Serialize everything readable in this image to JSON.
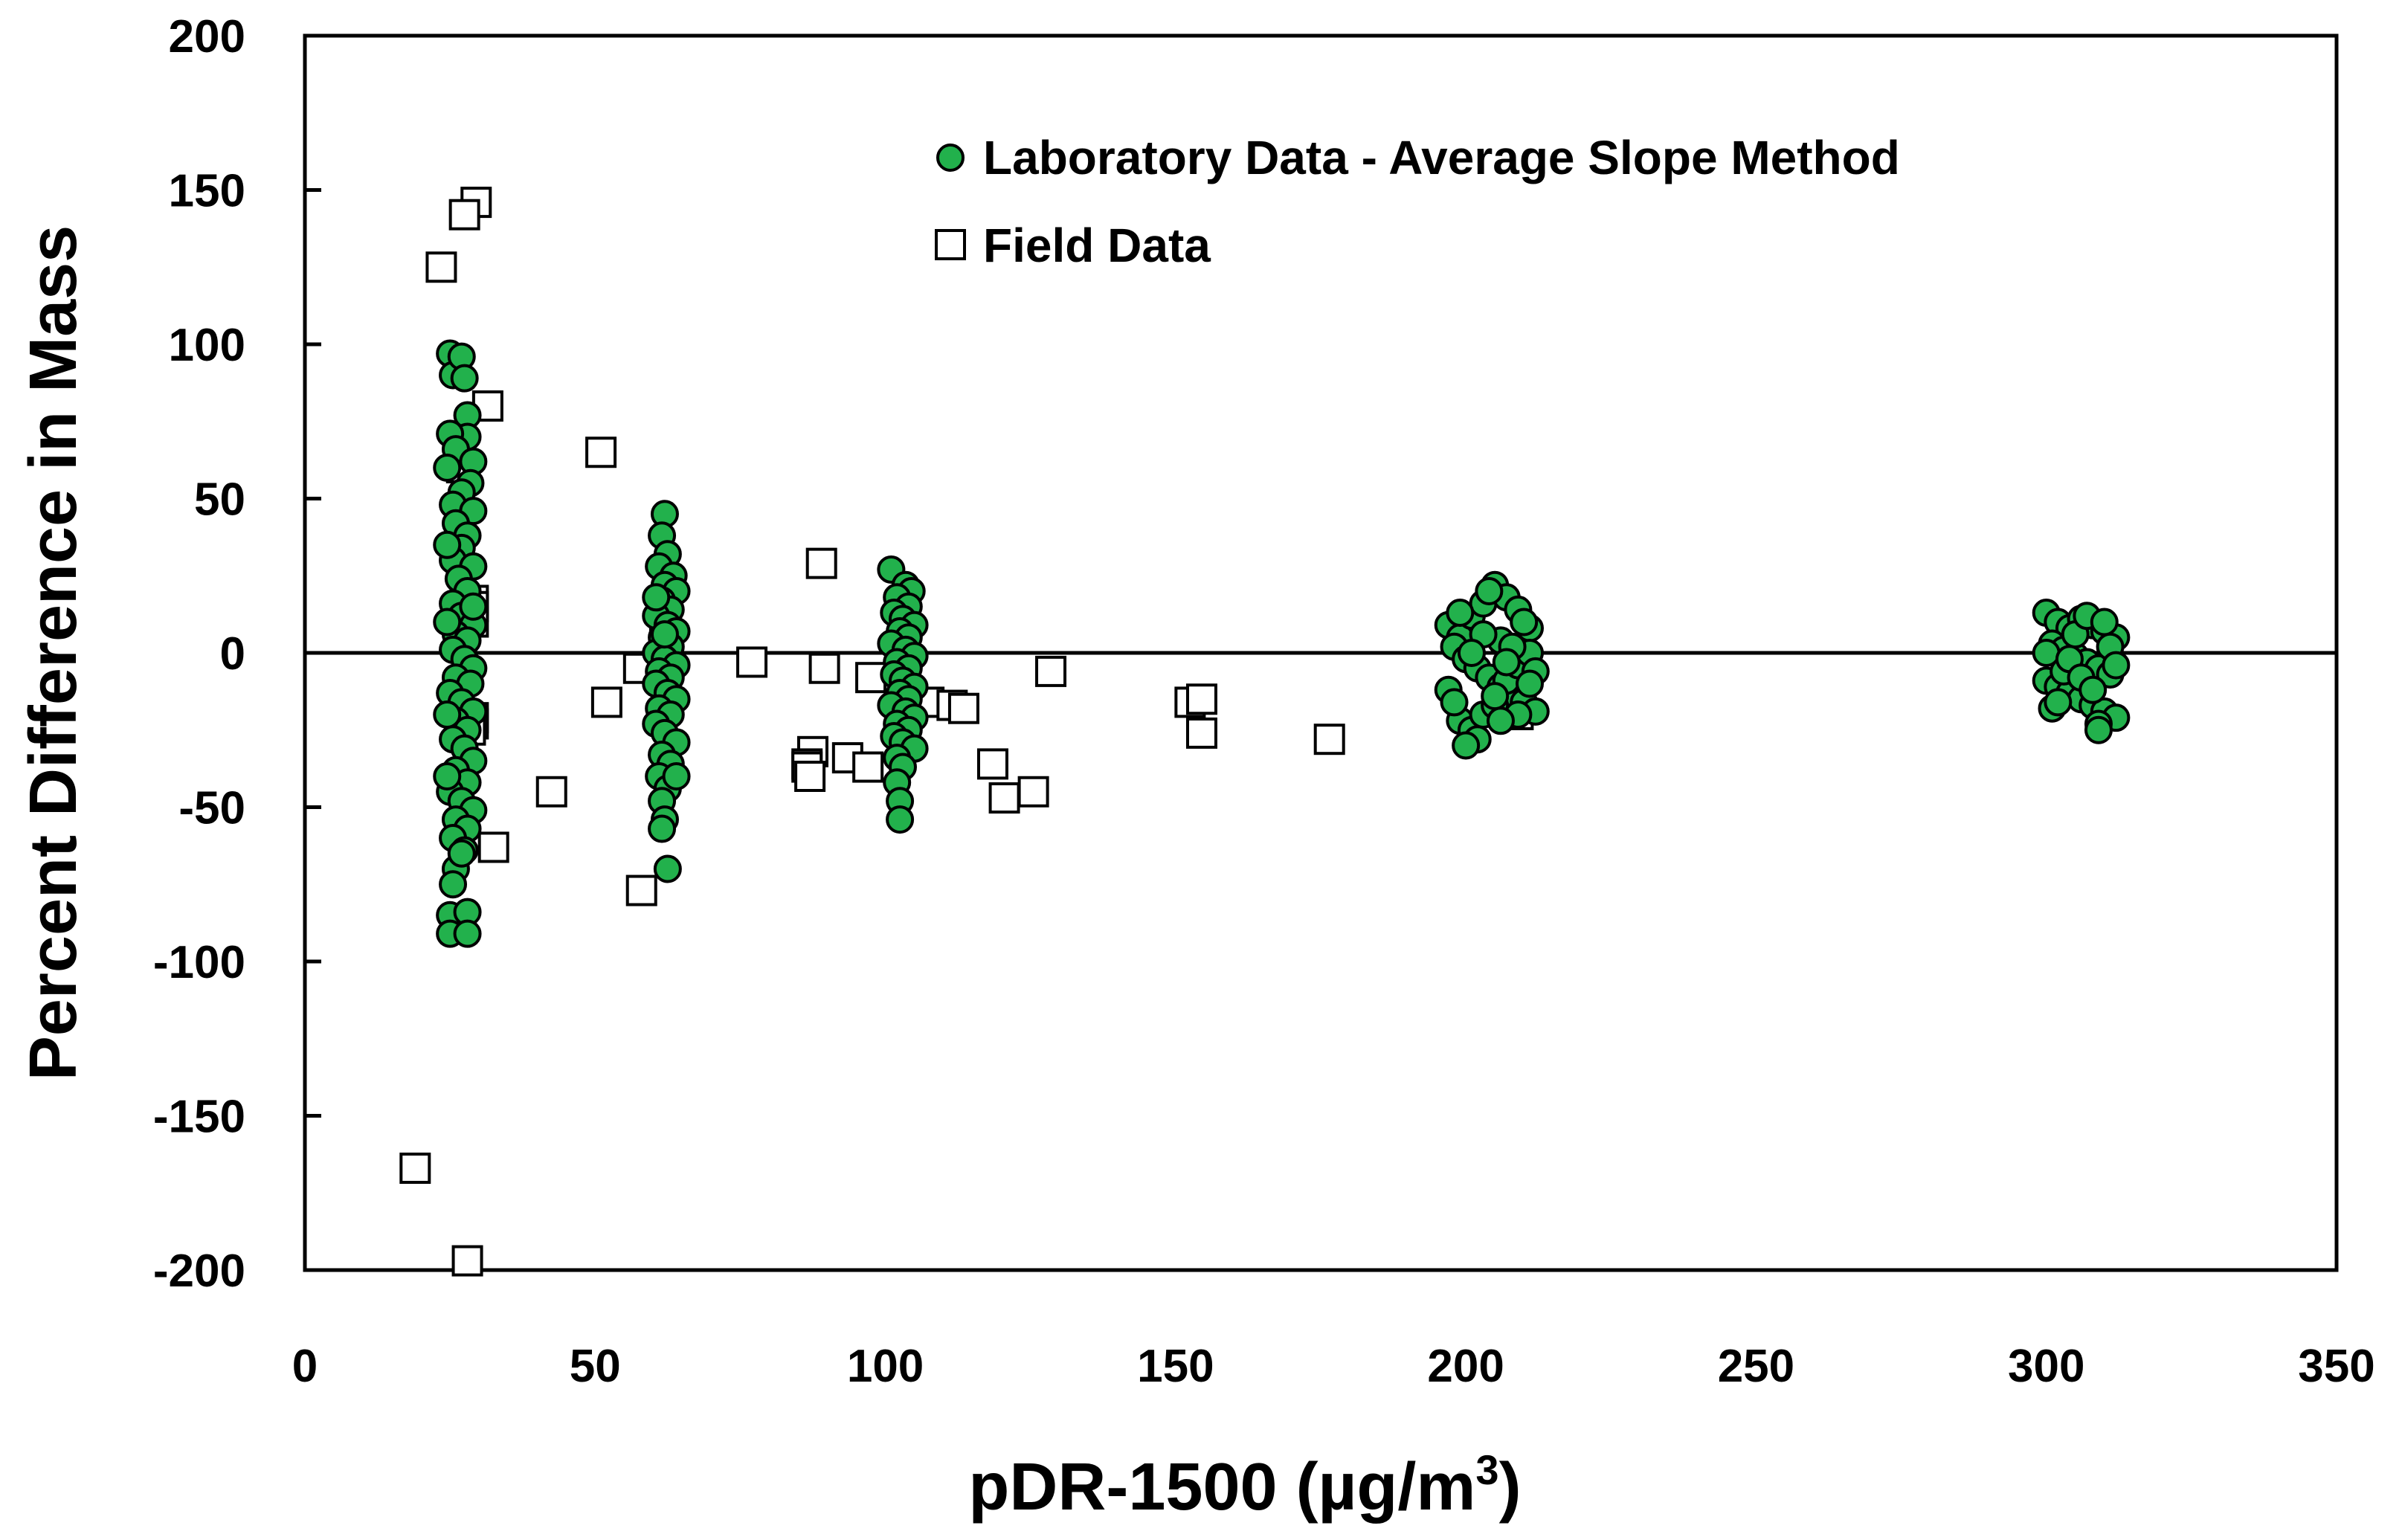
{
  "chart_data": {
    "type": "scatter",
    "title": "",
    "xlabel": "pDR-1500 (µg/m",
    "xlabel_superscript": "3",
    "xlabel_suffix": ")",
    "ylabel": "Percent Difference in Mass",
    "xlim": [
      0,
      350
    ],
    "ylim": [
      -200,
      200
    ],
    "x_ticks": [
      0,
      50,
      100,
      150,
      200,
      250,
      300,
      350
    ],
    "y_ticks": [
      200,
      150,
      100,
      50,
      0,
      -50,
      -100,
      -150,
      -200
    ],
    "x_tick_labels": [
      "0",
      "50",
      "100",
      "150",
      "200",
      "250",
      "300",
      "350"
    ],
    "y_tick_labels": [
      "200",
      "150",
      "100",
      "50",
      "0",
      "-50",
      "-100",
      "-150",
      "-200"
    ],
    "reference_line_y": 0,
    "grid": false,
    "legend_position": "top-center",
    "series": [
      {
        "name": "Laboratory Data - Average Slope Method",
        "marker": "circle",
        "color": "#22b14c",
        "edge_color": "#000000",
        "points": [
          [
            25,
            97
          ],
          [
            25.5,
            90
          ],
          [
            27,
            96
          ],
          [
            27.5,
            89
          ],
          [
            28,
            77
          ],
          [
            28,
            70
          ],
          [
            25,
            71
          ],
          [
            26,
            66
          ],
          [
            24.5,
            60
          ],
          [
            29,
            62
          ],
          [
            28.5,
            55
          ],
          [
            27,
            52
          ],
          [
            25.5,
            48
          ],
          [
            29,
            46
          ],
          [
            26,
            42
          ],
          [
            28,
            38
          ],
          [
            27,
            34
          ],
          [
            25.5,
            30
          ],
          [
            29,
            28
          ],
          [
            26.5,
            24
          ],
          [
            28,
            20
          ],
          [
            25.5,
            16
          ],
          [
            27,
            12
          ],
          [
            29,
            9
          ],
          [
            26,
            6
          ],
          [
            28,
            4
          ],
          [
            25.5,
            1
          ],
          [
            27.5,
            -2
          ],
          [
            29,
            -5
          ],
          [
            26,
            -8
          ],
          [
            28.5,
            -10
          ],
          [
            25,
            -13
          ],
          [
            27,
            -16
          ],
          [
            29,
            -19
          ],
          [
            26,
            -22
          ],
          [
            28,
            -25
          ],
          [
            25.5,
            -28
          ],
          [
            27.5,
            -31
          ],
          [
            29,
            -35
          ],
          [
            26,
            -38
          ],
          [
            28,
            -42
          ],
          [
            25,
            -45
          ],
          [
            27,
            -48
          ],
          [
            29,
            -51
          ],
          [
            26,
            -54
          ],
          [
            28,
            -57
          ],
          [
            25.5,
            -60
          ],
          [
            27.5,
            -64
          ],
          [
            26,
            -70
          ],
          [
            25.5,
            -75
          ],
          [
            25,
            -85
          ],
          [
            28,
            -84
          ],
          [
            25,
            -91
          ],
          [
            28,
            -91
          ],
          [
            24.5,
            35
          ],
          [
            24.5,
            10
          ],
          [
            24.5,
            -20
          ],
          [
            24.5,
            -40
          ],
          [
            29,
            15
          ],
          [
            27,
            -65
          ],
          [
            62,
            45
          ],
          [
            61.5,
            38
          ],
          [
            62.5,
            32
          ],
          [
            61,
            28
          ],
          [
            63.5,
            25
          ],
          [
            62,
            22
          ],
          [
            64,
            20
          ],
          [
            61.5,
            17
          ],
          [
            63,
            14
          ],
          [
            60.5,
            12
          ],
          [
            62.5,
            9
          ],
          [
            64,
            7
          ],
          [
            61.5,
            5
          ],
          [
            63,
            2
          ],
          [
            60.5,
            0
          ],
          [
            62,
            -2
          ],
          [
            64,
            -4
          ],
          [
            61,
            -6
          ],
          [
            63,
            -8
          ],
          [
            60.5,
            -10
          ],
          [
            62.5,
            -13
          ],
          [
            64,
            -15
          ],
          [
            61,
            -18
          ],
          [
            63,
            -20
          ],
          [
            60.5,
            -23
          ],
          [
            62,
            -26
          ],
          [
            64,
            -29
          ],
          [
            61.5,
            -33
          ],
          [
            63,
            -36
          ],
          [
            61,
            -40
          ],
          [
            62.5,
            -44
          ],
          [
            61.5,
            -48
          ],
          [
            62,
            -54
          ],
          [
            61.5,
            -57
          ],
          [
            62.5,
            -70
          ],
          [
            60.5,
            18
          ],
          [
            64,
            -40
          ],
          [
            62,
            6
          ],
          [
            101,
            27
          ],
          [
            103.5,
            22
          ],
          [
            104.5,
            20
          ],
          [
            102,
            18
          ],
          [
            104,
            15
          ],
          [
            101.5,
            13
          ],
          [
            103,
            11
          ],
          [
            105,
            9
          ],
          [
            102.5,
            7
          ],
          [
            104,
            5
          ],
          [
            101,
            3
          ],
          [
            103.5,
            1
          ],
          [
            105,
            -1
          ],
          [
            102,
            -3
          ],
          [
            104,
            -5
          ],
          [
            101.5,
            -7
          ],
          [
            103,
            -9
          ],
          [
            105,
            -11
          ],
          [
            102.5,
            -13
          ],
          [
            104,
            -15
          ],
          [
            101,
            -17
          ],
          [
            103.5,
            -19
          ],
          [
            105,
            -21
          ],
          [
            102,
            -23
          ],
          [
            104,
            -25
          ],
          [
            101.5,
            -27
          ],
          [
            103,
            -29
          ],
          [
            105,
            -31
          ],
          [
            102,
            -34
          ],
          [
            103,
            -37
          ],
          [
            102,
            -42
          ],
          [
            102.5,
            -48
          ],
          [
            102.5,
            -54
          ],
          [
            197,
            9
          ],
          [
            199,
            5
          ],
          [
            201,
            12
          ],
          [
            203,
            16
          ],
          [
            205,
            22
          ],
          [
            207,
            18
          ],
          [
            209,
            14
          ],
          [
            211,
            8
          ],
          [
            198,
            2
          ],
          [
            200,
            -2
          ],
          [
            202,
            -5
          ],
          [
            204,
            -8
          ],
          [
            206,
            -11
          ],
          [
            208,
            -13
          ],
          [
            210,
            -16
          ],
          [
            212,
            -19
          ],
          [
            199,
            -22
          ],
          [
            201,
            -25
          ],
          [
            203,
            -20
          ],
          [
            205,
            -17
          ],
          [
            207,
            -9
          ],
          [
            209,
            -4
          ],
          [
            211,
            0
          ],
          [
            197,
            -12
          ],
          [
            204,
            20
          ],
          [
            206,
            4
          ],
          [
            208,
            2
          ],
          [
            202,
            -28
          ],
          [
            200,
            -30
          ],
          [
            210,
            10
          ],
          [
            212,
            -6
          ],
          [
            203,
            6
          ],
          [
            205,
            -14
          ],
          [
            199,
            13
          ],
          [
            207,
            -3
          ],
          [
            209,
            -20
          ],
          [
            211,
            -10
          ],
          [
            198,
            -16
          ],
          [
            201,
            0
          ],
          [
            206,
            -22
          ],
          [
            300,
            13
          ],
          [
            302,
            10
          ],
          [
            304,
            8
          ],
          [
            306,
            11
          ],
          [
            308,
            9
          ],
          [
            310,
            7
          ],
          [
            312,
            5
          ],
          [
            301,
            3
          ],
          [
            303,
            1
          ],
          [
            305,
            -1
          ],
          [
            307,
            -3
          ],
          [
            309,
            -5
          ],
          [
            311,
            -7
          ],
          [
            300,
            -9
          ],
          [
            302,
            -11
          ],
          [
            304,
            -13
          ],
          [
            306,
            -15
          ],
          [
            308,
            -17
          ],
          [
            310,
            -19
          ],
          [
            312,
            -21
          ],
          [
            309,
            -23
          ],
          [
            309,
            -25
          ],
          [
            301,
            -18
          ],
          [
            303,
            -6
          ],
          [
            305,
            6
          ],
          [
            307,
            12
          ],
          [
            311,
            2
          ],
          [
            300,
            0
          ],
          [
            304,
            -2
          ],
          [
            306,
            -8
          ],
          [
            308,
            -12
          ],
          [
            310,
            10
          ],
          [
            302,
            -16
          ],
          [
            312,
            -4
          ]
        ]
      },
      {
        "name": "Field Data",
        "marker": "square",
        "color": "#ffffff",
        "edge_color": "#000000",
        "points": [
          [
            29.5,
            146
          ],
          [
            27.5,
            142
          ],
          [
            23.5,
            125
          ],
          [
            31.5,
            80
          ],
          [
            51,
            65
          ],
          [
            27,
            60
          ],
          [
            29,
            17
          ],
          [
            29,
            15
          ],
          [
            28.5,
            12
          ],
          [
            29,
            10
          ],
          [
            29,
            -21
          ],
          [
            29,
            -23
          ],
          [
            28.5,
            -25
          ],
          [
            32.5,
            -63
          ],
          [
            28,
            -197
          ],
          [
            19,
            -167
          ],
          [
            42.5,
            -45
          ],
          [
            52,
            -16
          ],
          [
            57.5,
            -5
          ],
          [
            58,
            -77
          ],
          [
            62,
            5
          ],
          [
            62,
            3
          ],
          [
            62.5,
            -3
          ],
          [
            77,
            -3
          ],
          [
            89,
            29
          ],
          [
            89.5,
            -5
          ],
          [
            87.5,
            -32
          ],
          [
            86.5,
            -36
          ],
          [
            86.5,
            -37
          ],
          [
            87,
            -40
          ],
          [
            93.5,
            -34
          ],
          [
            97,
            -37
          ],
          [
            97.5,
            -8
          ],
          [
            104.5,
            -18
          ],
          [
            107.5,
            -16
          ],
          [
            111.5,
            -17
          ],
          [
            113.5,
            -18
          ],
          [
            118.5,
            -36
          ],
          [
            120.5,
            -47
          ],
          [
            125.5,
            -45
          ],
          [
            128.5,
            -6
          ],
          [
            152.5,
            -16
          ],
          [
            154.5,
            -15
          ],
          [
            154.5,
            -26
          ],
          [
            176.5,
            -28
          ],
          [
            209,
            -20
          ]
        ]
      }
    ]
  }
}
